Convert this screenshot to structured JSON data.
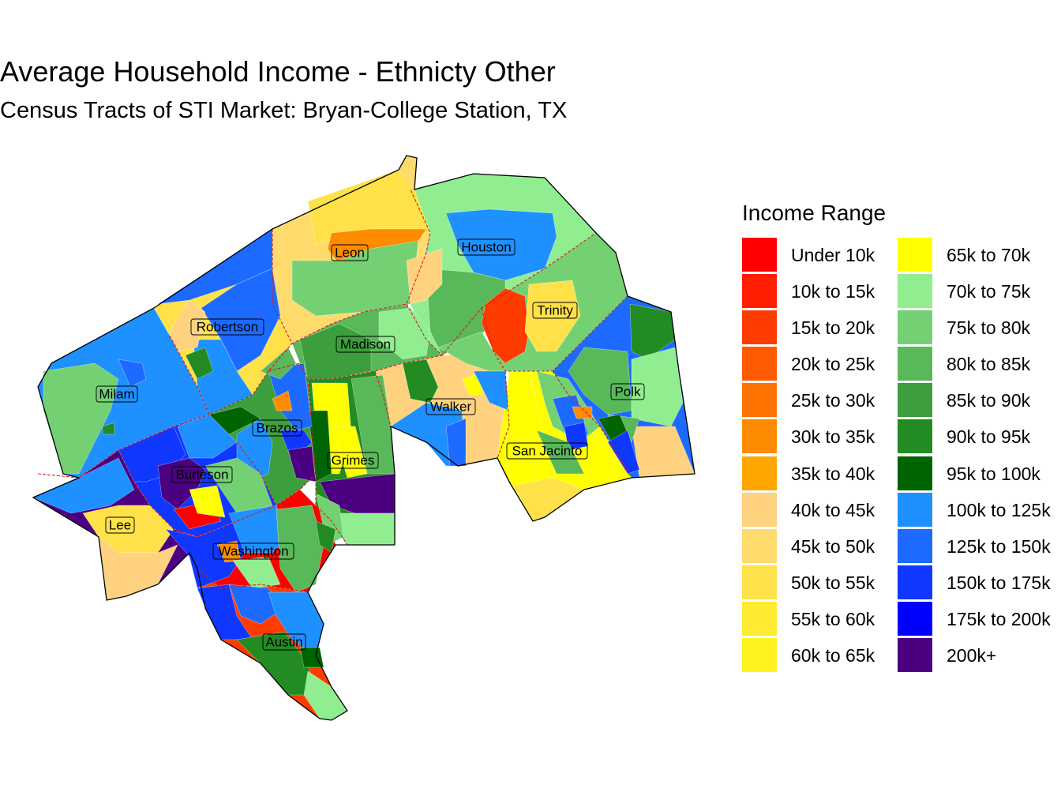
{
  "title": "Average Household Income - Ethnicty Other",
  "subtitle": "Census Tracts of STI Market: Bryan-College Station, TX",
  "legend": {
    "title": "Income Range",
    "items": [
      {
        "label": "Under 10k",
        "color": "#ff0000"
      },
      {
        "label": "10k to 15k",
        "color": "#ff1e00"
      },
      {
        "label": "15k to 20k",
        "color": "#ff3c00"
      },
      {
        "label": "20k to 25k",
        "color": "#ff5a00"
      },
      {
        "label": "25k to 30k",
        "color": "#ff7300"
      },
      {
        "label": "30k to 35k",
        "color": "#ff8c00"
      },
      {
        "label": "35k to 40k",
        "color": "#ffa500"
      },
      {
        "label": "40k to 45k",
        "color": "#ffd27f"
      },
      {
        "label": "45k to 50k",
        "color": "#ffdb6e"
      },
      {
        "label": "50k to 55k",
        "color": "#ffe14a"
      },
      {
        "label": "55k to 60k",
        "color": "#ffea32"
      },
      {
        "label": "60k to 65k",
        "color": "#fff21e"
      },
      {
        "label": "65k to 70k",
        "color": "#ffff00"
      },
      {
        "label": "70k to 75k",
        "color": "#90ee90"
      },
      {
        "label": "75k to 80k",
        "color": "#73d173"
      },
      {
        "label": "80k to 85k",
        "color": "#59b859"
      },
      {
        "label": "85k to 90k",
        "color": "#3c9e3c"
      },
      {
        "label": "90k to 95k",
        "color": "#228b22"
      },
      {
        "label": "95k to 100k",
        "color": "#006400"
      },
      {
        "label": "100k to 125k",
        "color": "#1e90ff"
      },
      {
        "label": "125k to 150k",
        "color": "#1c6aff"
      },
      {
        "label": "150k to 175k",
        "color": "#0f37ff"
      },
      {
        "label": "175k to 200k",
        "color": "#0000ff"
      },
      {
        "label": "200k+",
        "color": "#4b0082"
      }
    ]
  },
  "counties": [
    {
      "name": "Leon"
    },
    {
      "name": "Houston"
    },
    {
      "name": "Trinity"
    },
    {
      "name": "Robertson"
    },
    {
      "name": "Madison"
    },
    {
      "name": "Milam"
    },
    {
      "name": "Polk"
    },
    {
      "name": "Walker"
    },
    {
      "name": "Brazos"
    },
    {
      "name": "San Jacinto"
    },
    {
      "name": "Grimes"
    },
    {
      "name": "Burleson"
    },
    {
      "name": "Lee"
    },
    {
      "name": "Washington"
    },
    {
      "name": "Austin"
    }
  ],
  "county_colors": [
    "#ffdb6e",
    "#90ee90",
    "#73d173",
    "#ffe14a",
    "#59b859",
    "#1e90ff",
    "#1c6aff",
    "#ffd27f",
    "#3c9e3c",
    "#ffff00",
    "#228b22",
    "#0f37ff",
    "#4b0082",
    "#ff0000",
    "#ff3c00",
    "#ff8c00",
    "#006400"
  ]
}
